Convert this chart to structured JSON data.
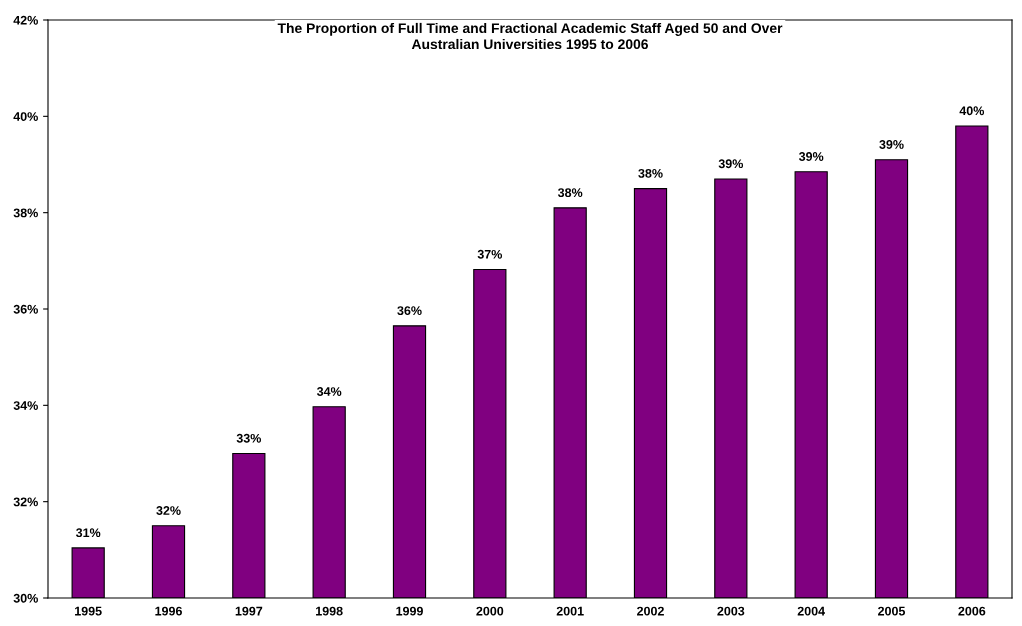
{
  "chart_data": {
    "type": "bar",
    "title": "The Proportion of Full Time and Fractional Academic Staff Aged 50 and Over\nAustralian Universities 1995 to 2006",
    "categories": [
      "1995",
      "1996",
      "1997",
      "1998",
      "1999",
      "2000",
      "2001",
      "2002",
      "2003",
      "2004",
      "2005",
      "2006"
    ],
    "values": [
      31.04,
      31.5,
      33.0,
      33.97,
      35.65,
      36.82,
      38.1,
      38.5,
      38.7,
      38.85,
      39.1,
      39.8
    ],
    "value_labels": [
      "31%",
      "32%",
      "33%",
      "34%",
      "36%",
      "37%",
      "38%",
      "38%",
      "39%",
      "39%",
      "39%",
      "40%"
    ],
    "color": "#800080",
    "ylim": [
      30,
      42
    ],
    "yticks": [
      {
        "value": 30,
        "label": "30%"
      },
      {
        "value": 32,
        "label": "32%"
      },
      {
        "value": 34,
        "label": "34%"
      },
      {
        "value": 36,
        "label": "36%"
      },
      {
        "value": 38,
        "label": "38%"
      },
      {
        "value": 40,
        "label": "40%"
      },
      {
        "value": 42,
        "label": "42%"
      }
    ],
    "grid": false,
    "legend": false
  }
}
